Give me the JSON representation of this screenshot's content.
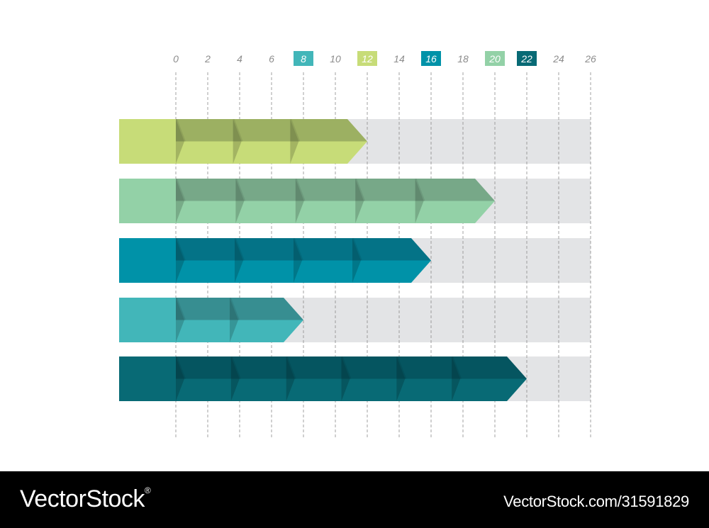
{
  "chart_data": {
    "type": "bar",
    "orientation": "horizontal",
    "x_ticks": [
      0,
      2,
      4,
      6,
      8,
      10,
      12,
      14,
      16,
      18,
      20,
      22,
      24,
      26
    ],
    "xlim": [
      0,
      26
    ],
    "grid": "vertical dashed",
    "bars": [
      {
        "value": 12,
        "segments": 3,
        "color": "#c7dc78",
        "shade": "#9cb062"
      },
      {
        "value": 20,
        "segments": 5,
        "color": "#93d1a7",
        "shade": "#77a888"
      },
      {
        "value": 16,
        "segments": 4,
        "color": "#0092a8",
        "shade": "#047387"
      },
      {
        "value": 8,
        "segments": 2,
        "color": "#42b6b9",
        "shade": "#378e91"
      },
      {
        "value": 22,
        "segments": 6,
        "color": "#086a75",
        "shade": "#055560"
      }
    ],
    "track_color": "#e3e4e6"
  },
  "footer": {
    "brand": "VectorStock",
    "brand_registered": "®",
    "stock_id": "VectorStock.com/31591829"
  }
}
